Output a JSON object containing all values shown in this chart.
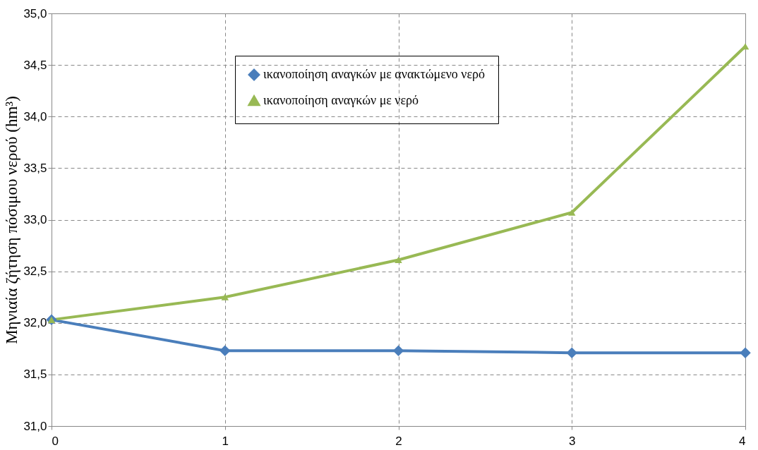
{
  "chart_data": {
    "type": "line",
    "ylabel": "Μηνιαία ζήτηση πόσιμου νερού (hm³)",
    "x": [
      0,
      1,
      2,
      3,
      4
    ],
    "series": [
      {
        "name": "ικανοποίηση αναγκών με ανακτώμενο νερό",
        "color": "#4a7ebb",
        "marker": "diamond",
        "values": [
          32.03,
          31.73,
          31.73,
          31.71,
          31.71
        ]
      },
      {
        "name": "ικανοποίηση αναγκών με νερό",
        "color": "#98b954",
        "marker": "triangle",
        "values": [
          32.03,
          32.25,
          32.61,
          33.07,
          34.68
        ]
      }
    ],
    "xlim": [
      0,
      4
    ],
    "xticks": [
      0,
      1,
      2,
      3,
      4
    ],
    "ylim": [
      31,
      35
    ],
    "yticks": [
      {
        "value": 31,
        "label": "31,0"
      },
      {
        "value": 31.5,
        "label": "31,5"
      },
      {
        "value": 32,
        "label": "32,0"
      },
      {
        "value": 32.5,
        "label": "32,5"
      },
      {
        "value": 33,
        "label": "33,0"
      },
      {
        "value": 33.5,
        "label": "33,5"
      },
      {
        "value": 34,
        "label": "34,0"
      },
      {
        "value": 34.5,
        "label": "34,5"
      },
      {
        "value": 35,
        "label": "35,0"
      }
    ],
    "grid": true,
    "legend": "top",
    "line_style": "solid"
  }
}
